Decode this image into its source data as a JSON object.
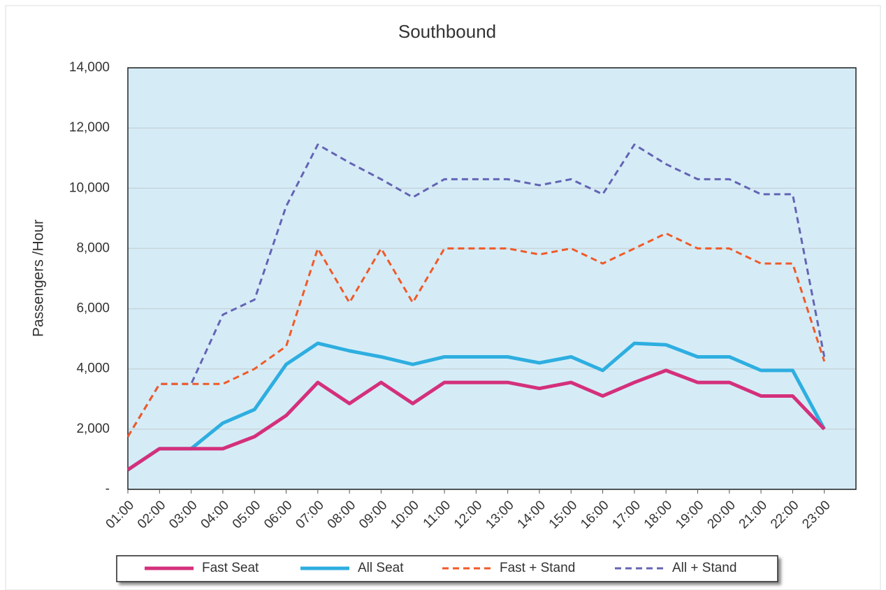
{
  "chart_data": {
    "type": "line",
    "title": "Southbound",
    "y_label": "Passengers /Hour",
    "categories": [
      "01:00",
      "02:00",
      "03:00",
      "04:00",
      "05:00",
      "06:00",
      "07:00",
      "08:00",
      "09:00",
      "10:00",
      "11:00",
      "12:00",
      "13:00",
      "14:00",
      "15:00",
      "16:00",
      "17:00",
      "18:00",
      "19:00",
      "20:00",
      "21:00",
      "22:00",
      "23:00"
    ],
    "series": [
      {
        "name": "Fast Seat",
        "color": "#d4307c",
        "line_style": "solid",
        "values": [
          650,
          1350,
          1350,
          1350,
          1750,
          2450,
          3550,
          2850,
          3550,
          2850,
          3550,
          3550,
          3550,
          3350,
          3550,
          3100,
          3550,
          3950,
          3550,
          3550,
          3100,
          3100,
          2000
        ]
      },
      {
        "name": "All Seat",
        "color": "#2eaee0",
        "line_style": "solid",
        "values": [
          650,
          1350,
          1350,
          2200,
          2650,
          4150,
          4850,
          4600,
          4400,
          4150,
          4400,
          4400,
          4400,
          4200,
          4400,
          3950,
          4850,
          4800,
          4400,
          4400,
          3950,
          3950,
          2000
        ]
      },
      {
        "name": "Fast + Stand",
        "color": "#f05a28",
        "line_style": "dashed",
        "values": [
          1750,
          3500,
          3500,
          3500,
          4000,
          4750,
          8000,
          6200,
          8000,
          6200,
          8000,
          8000,
          8000,
          7800,
          8000,
          7500,
          8000,
          8500,
          8000,
          8000,
          7500,
          7500,
          4250
        ]
      },
      {
        "name": "All + Stand",
        "color": "#6464b4",
        "line_style": "dashed",
        "values": [
          1750,
          3500,
          3500,
          5800,
          6300,
          9400,
          11450,
          10850,
          10300,
          9700,
          10300,
          10300,
          10300,
          10100,
          10300,
          9800,
          11450,
          10800,
          10300,
          10300,
          9800,
          9800,
          4400
        ]
      }
    ],
    "ylim": [
      0,
      14000
    ],
    "yticks": [
      {
        "value": 0,
        "label": "-"
      },
      {
        "value": 2000,
        "label": "2,000"
      },
      {
        "value": 4000,
        "label": "4,000"
      },
      {
        "value": 6000,
        "label": "6,000"
      },
      {
        "value": 8000,
        "label": "8,000"
      },
      {
        "value": 10000,
        "label": "10,000"
      },
      {
        "value": 12000,
        "label": "12,000"
      },
      {
        "value": 14000,
        "label": "14,000"
      }
    ],
    "grid": true,
    "legend": "bottom"
  }
}
